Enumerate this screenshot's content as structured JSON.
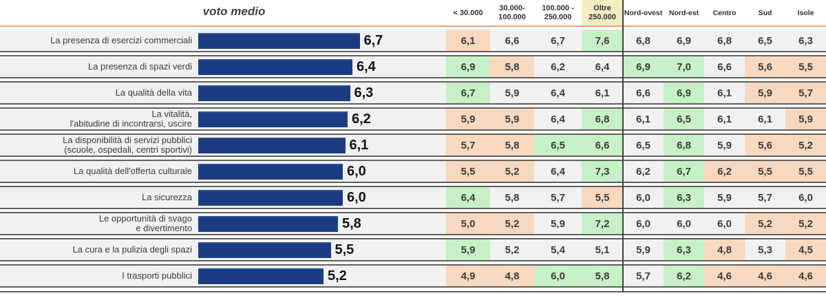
{
  "title": "voto medio",
  "columns": {
    "size": [
      "< 30.000",
      "30.000-\n100.000",
      "100.000 -\n250.000",
      "Oltre\n250.000"
    ],
    "region": [
      "Nord-ovest",
      "Nord-est",
      "Centro",
      "Sud",
      "Isole"
    ]
  },
  "colors": {
    "bar": "#1B3C80",
    "cell_above_avg": "#C8F0C6",
    "cell_below_avg": "#F8D8BE",
    "row_background": "#F1F1F1",
    "oltre_header_background": "#F2ECC0",
    "top_rule": "#E5A47B",
    "dark_rule": "#5A5A5A"
  },
  "rows": [
    {
      "label": "La presenza di esercizi commerciali",
      "value_label": "6,7",
      "value": 6.7,
      "cells": [
        {
          "text": "6,1",
          "tone": "below"
        },
        {
          "text": "6,6",
          "tone": "none"
        },
        {
          "text": "6,7",
          "tone": "none"
        },
        {
          "text": "7,6",
          "tone": "above"
        },
        {
          "text": "6,8",
          "tone": "none"
        },
        {
          "text": "6,9",
          "tone": "none"
        },
        {
          "text": "6,8",
          "tone": "none"
        },
        {
          "text": "6,5",
          "tone": "none"
        },
        {
          "text": "6,3",
          "tone": "none"
        }
      ]
    },
    {
      "label": "La presenza di spazi verdi",
      "value_label": "6,4",
      "value": 6.4,
      "cells": [
        {
          "text": "6,9",
          "tone": "above"
        },
        {
          "text": "5,8",
          "tone": "below"
        },
        {
          "text": "6,2",
          "tone": "none"
        },
        {
          "text": "6,4",
          "tone": "none"
        },
        {
          "text": "6,9",
          "tone": "above"
        },
        {
          "text": "7,0",
          "tone": "above"
        },
        {
          "text": "6,6",
          "tone": "none"
        },
        {
          "text": "5,6",
          "tone": "below"
        },
        {
          "text": "5,5",
          "tone": "below"
        }
      ]
    },
    {
      "label": "La qualità della vita",
      "value_label": "6,3",
      "value": 6.3,
      "cells": [
        {
          "text": "6,7",
          "tone": "above"
        },
        {
          "text": "5,9",
          "tone": "none"
        },
        {
          "text": "6,4",
          "tone": "none"
        },
        {
          "text": "6,1",
          "tone": "none"
        },
        {
          "text": "6,6",
          "tone": "none"
        },
        {
          "text": "6,9",
          "tone": "above"
        },
        {
          "text": "6,1",
          "tone": "none"
        },
        {
          "text": "5,9",
          "tone": "below"
        },
        {
          "text": "5,7",
          "tone": "below"
        }
      ]
    },
    {
      "label": "La vitalità,\nl'abitudine di incontrarsi, uscire",
      "value_label": "6,2",
      "value": 6.2,
      "cells": [
        {
          "text": "5,9",
          "tone": "below"
        },
        {
          "text": "5,9",
          "tone": "below"
        },
        {
          "text": "6,4",
          "tone": "none"
        },
        {
          "text": "6,8",
          "tone": "above"
        },
        {
          "text": "6,1",
          "tone": "none"
        },
        {
          "text": "6,5",
          "tone": "above"
        },
        {
          "text": "6,1",
          "tone": "none"
        },
        {
          "text": "6,1",
          "tone": "none"
        },
        {
          "text": "5,9",
          "tone": "below"
        }
      ]
    },
    {
      "label": "La disponibilità di servizi pubblici\n(scuole, ospedali, centri sportivi)",
      "value_label": "6,1",
      "value": 6.1,
      "cells": [
        {
          "text": "5,7",
          "tone": "below"
        },
        {
          "text": "5,8",
          "tone": "below"
        },
        {
          "text": "6,5",
          "tone": "above"
        },
        {
          "text": "6,6",
          "tone": "above"
        },
        {
          "text": "6,5",
          "tone": "none"
        },
        {
          "text": "6,8",
          "tone": "above"
        },
        {
          "text": "5,9",
          "tone": "none"
        },
        {
          "text": "5,6",
          "tone": "below"
        },
        {
          "text": "5,2",
          "tone": "below"
        }
      ]
    },
    {
      "label": "La qualità dell'offerta culturale",
      "value_label": "6,0",
      "value": 6.0,
      "cells": [
        {
          "text": "5,5",
          "tone": "below"
        },
        {
          "text": "5,2",
          "tone": "below"
        },
        {
          "text": "6,4",
          "tone": "none"
        },
        {
          "text": "7,3",
          "tone": "above"
        },
        {
          "text": "6,2",
          "tone": "none"
        },
        {
          "text": "6,7",
          "tone": "above"
        },
        {
          "text": "6,2",
          "tone": "below"
        },
        {
          "text": "5,5",
          "tone": "below"
        },
        {
          "text": "5,5",
          "tone": "below"
        }
      ]
    },
    {
      "label": "La sicurezza",
      "value_label": "6,0",
      "value": 6.0,
      "cells": [
        {
          "text": "6,4",
          "tone": "above"
        },
        {
          "text": "5,8",
          "tone": "none"
        },
        {
          "text": "5,7",
          "tone": "none"
        },
        {
          "text": "5,5",
          "tone": "below"
        },
        {
          "text": "6,0",
          "tone": "none"
        },
        {
          "text": "6,3",
          "tone": "above"
        },
        {
          "text": "5,9",
          "tone": "none"
        },
        {
          "text": "5,7",
          "tone": "none"
        },
        {
          "text": "6,0",
          "tone": "none"
        }
      ]
    },
    {
      "label": "Le opportunità di svago\ne divertimento",
      "value_label": "5,8",
      "value": 5.8,
      "cells": [
        {
          "text": "5,0",
          "tone": "below"
        },
        {
          "text": "5,2",
          "tone": "below"
        },
        {
          "text": "5,9",
          "tone": "none"
        },
        {
          "text": "7,2",
          "tone": "above"
        },
        {
          "text": "6,0",
          "tone": "none"
        },
        {
          "text": "6,0",
          "tone": "none"
        },
        {
          "text": "6,0",
          "tone": "none"
        },
        {
          "text": "5,2",
          "tone": "below"
        },
        {
          "text": "5,2",
          "tone": "below"
        }
      ]
    },
    {
      "label": "La cura e la pulizia degli spazi",
      "value_label": "5,5",
      "value": 5.5,
      "cells": [
        {
          "text": "5,9",
          "tone": "above"
        },
        {
          "text": "5,2",
          "tone": "none"
        },
        {
          "text": "5,4",
          "tone": "none"
        },
        {
          "text": "5,1",
          "tone": "none"
        },
        {
          "text": "5,9",
          "tone": "none"
        },
        {
          "text": "6,3",
          "tone": "above"
        },
        {
          "text": "4,8",
          "tone": "below"
        },
        {
          "text": "5,3",
          "tone": "none"
        },
        {
          "text": "4,5",
          "tone": "below"
        }
      ]
    },
    {
      "label": "I trasporti pubblici",
      "value_label": "5,2",
      "value": 5.2,
      "cells": [
        {
          "text": "4,9",
          "tone": "below"
        },
        {
          "text": "4,8",
          "tone": "below"
        },
        {
          "text": "6,0",
          "tone": "above"
        },
        {
          "text": "5,8",
          "tone": "above"
        },
        {
          "text": "5,7",
          "tone": "none"
        },
        {
          "text": "6,2",
          "tone": "above"
        },
        {
          "text": "4,6",
          "tone": "below"
        },
        {
          "text": "4,6",
          "tone": "below"
        },
        {
          "text": "4,6",
          "tone": "below"
        }
      ]
    }
  ],
  "chart_data": {
    "type": "bar",
    "orientation": "horizontal",
    "title": "voto medio",
    "categories": [
      "La presenza di esercizi commerciali",
      "La presenza di spazi verdi",
      "La qualità della vita",
      "La vitalità, l'abitudine di incontrarsi, uscire",
      "La disponibilità di servizi pubblici (scuole, ospedali, centri sportivi)",
      "La qualità dell'offerta culturale",
      "La sicurezza",
      "Le opportunità di svago e divertimento",
      "La cura e la pulizia degli spazi",
      "I trasporti pubblici"
    ],
    "values": [
      6.7,
      6.4,
      6.3,
      6.2,
      6.1,
      6.0,
      6.0,
      5.8,
      5.5,
      5.2
    ],
    "xlim": [
      0,
      7.6
    ],
    "table": {
      "columns": [
        "< 30.000",
        "30.000-100.000",
        "100.000 - 250.000",
        "Oltre 250.000",
        "Nord-ovest",
        "Nord-est",
        "Centro",
        "Sud",
        "Isole"
      ],
      "rows": [
        [
          6.1,
          6.6,
          6.7,
          7.6,
          6.8,
          6.9,
          6.8,
          6.5,
          6.3
        ],
        [
          6.9,
          5.8,
          6.2,
          6.4,
          6.9,
          7.0,
          6.6,
          5.6,
          5.5
        ],
        [
          6.7,
          5.9,
          6.4,
          6.1,
          6.6,
          6.9,
          6.1,
          5.9,
          5.7
        ],
        [
          5.9,
          5.9,
          6.4,
          6.8,
          6.1,
          6.5,
          6.1,
          6.1,
          5.9
        ],
        [
          5.7,
          5.8,
          6.5,
          6.6,
          6.5,
          6.8,
          5.9,
          5.6,
          5.2
        ],
        [
          5.5,
          5.2,
          6.4,
          7.3,
          6.2,
          6.7,
          6.2,
          5.5,
          5.5
        ],
        [
          6.4,
          5.8,
          5.7,
          5.5,
          6.0,
          6.3,
          5.9,
          5.7,
          6.0
        ],
        [
          5.0,
          5.2,
          5.9,
          7.2,
          6.0,
          6.0,
          6.0,
          5.2,
          5.2
        ],
        [
          5.9,
          5.2,
          5.4,
          5.1,
          5.9,
          6.3,
          4.8,
          5.3,
          4.5
        ],
        [
          4.9,
          4.8,
          6.0,
          5.8,
          5.7,
          6.2,
          4.6,
          4.6,
          4.6
        ]
      ]
    }
  }
}
